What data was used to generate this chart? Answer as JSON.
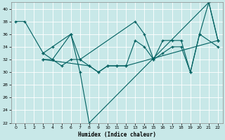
{
  "xlabel": "Humidex (Indice chaleur)",
  "bg_color": "#c8e8e8",
  "line_color": "#006060",
  "xlim": [
    -0.5,
    22.5
  ],
  "ylim": [
    22,
    41
  ],
  "yticks": [
    22,
    24,
    26,
    28,
    30,
    32,
    34,
    36,
    38,
    40
  ],
  "xticks": [
    0,
    1,
    2,
    3,
    4,
    5,
    6,
    7,
    8,
    9,
    10,
    11,
    12,
    13,
    14,
    15,
    16,
    17,
    18,
    19,
    20,
    21,
    22
  ],
  "series": [
    {
      "x": [
        0,
        1,
        3,
        4,
        6,
        7,
        8,
        21,
        22
      ],
      "y": [
        38,
        38,
        33,
        32,
        36,
        30,
        22,
        41,
        35
      ]
    },
    {
      "x": [
        3,
        4,
        5,
        6,
        7,
        8,
        9,
        10,
        11,
        12,
        13,
        14,
        15,
        16,
        17,
        18,
        19,
        20,
        22
      ],
      "y": [
        32,
        32,
        31,
        32,
        32,
        31,
        30,
        31,
        31,
        31,
        35,
        34,
        32,
        33,
        34,
        34,
        30,
        36,
        34
      ]
    },
    {
      "x": [
        3,
        4,
        6,
        7,
        13,
        14,
        15,
        16,
        17,
        18,
        19,
        20,
        21,
        22
      ],
      "y": [
        33,
        34,
        36,
        32,
        38,
        36,
        32,
        35,
        35,
        35,
        30,
        36,
        41,
        35
      ]
    },
    {
      "x": [
        3,
        8,
        9,
        10,
        11,
        12,
        22
      ],
      "y": [
        32,
        31,
        30,
        31,
        31,
        31,
        35
      ]
    }
  ]
}
